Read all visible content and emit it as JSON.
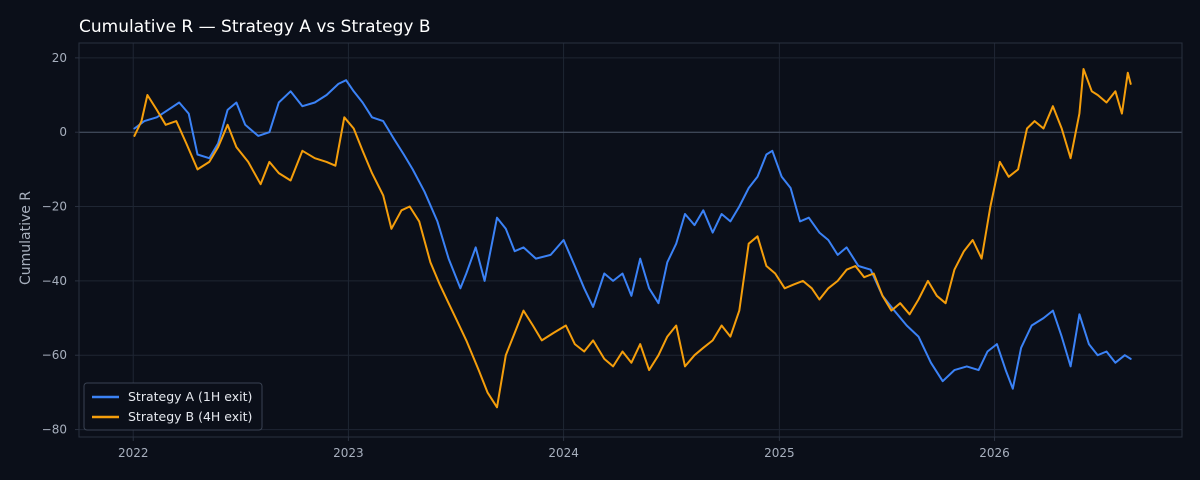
{
  "colors": {
    "background": "#0b0f19",
    "axes_border": "#2a3140",
    "grid": "#1f2633",
    "zero_line": "#4b5566",
    "tick_text": "#a7afbd",
    "title_text": "#ffffff"
  },
  "chart_data": {
    "type": "line",
    "title": "Cumulative R — Strategy A vs Strategy B",
    "xlabel": "",
    "ylabel": "Cumulative R",
    "xlim": [
      "2021-10-01",
      "2026-11-15"
    ],
    "ylim": [
      -82,
      24
    ],
    "x_ticks": [
      "2022",
      "2023",
      "2024",
      "2025",
      "2026"
    ],
    "y_ticks": [
      20,
      0,
      -20,
      -40,
      -60,
      -80
    ],
    "y_tick_labels": [
      "20",
      "0",
      "−20",
      "−40",
      "−60",
      "−80"
    ],
    "grid": true,
    "zero_line": true,
    "legend_position": "lower-left",
    "series": [
      {
        "name": "Strategy A (1H exit)",
        "color": "#3b82f6",
        "points": [
          [
            "2022-01-03",
            1
          ],
          [
            "2022-01-20",
            3
          ],
          [
            "2022-02-10",
            4
          ],
          [
            "2022-03-01",
            6
          ],
          [
            "2022-03-20",
            8
          ],
          [
            "2022-04-05",
            5
          ],
          [
            "2022-04-20",
            -6
          ],
          [
            "2022-05-10",
            -7
          ],
          [
            "2022-05-25",
            -3
          ],
          [
            "2022-06-10",
            6
          ],
          [
            "2022-06-25",
            8
          ],
          [
            "2022-07-10",
            2
          ],
          [
            "2022-08-01",
            -1
          ],
          [
            "2022-08-20",
            0
          ],
          [
            "2022-09-05",
            8
          ],
          [
            "2022-09-25",
            11
          ],
          [
            "2022-10-15",
            7
          ],
          [
            "2022-11-05",
            8
          ],
          [
            "2022-11-25",
            10
          ],
          [
            "2022-12-15",
            13
          ],
          [
            "2022-12-28",
            14
          ],
          [
            "2023-01-10",
            11
          ],
          [
            "2023-01-25",
            8
          ],
          [
            "2023-02-10",
            4
          ],
          [
            "2023-03-01",
            3
          ],
          [
            "2023-03-20",
            -2
          ],
          [
            "2023-04-05",
            -6
          ],
          [
            "2023-04-20",
            -10
          ],
          [
            "2023-05-10",
            -16
          ],
          [
            "2023-06-01",
            -24
          ],
          [
            "2023-06-20",
            -34
          ],
          [
            "2023-07-10",
            -42
          ],
          [
            "2023-07-20",
            -38
          ],
          [
            "2023-08-05",
            -31
          ],
          [
            "2023-08-20",
            -40
          ],
          [
            "2023-09-10",
            -23
          ],
          [
            "2023-09-25",
            -26
          ],
          [
            "2023-10-10",
            -32
          ],
          [
            "2023-10-25",
            -31
          ],
          [
            "2023-11-15",
            -34
          ],
          [
            "2023-12-10",
            -33
          ],
          [
            "2024-01-01",
            -29
          ],
          [
            "2024-01-20",
            -36
          ],
          [
            "2024-02-05",
            -42
          ],
          [
            "2024-02-20",
            -47
          ],
          [
            "2024-03-10",
            -38
          ],
          [
            "2024-03-25",
            -40
          ],
          [
            "2024-04-10",
            -38
          ],
          [
            "2024-04-25",
            -44
          ],
          [
            "2024-05-10",
            -34
          ],
          [
            "2024-05-25",
            -42
          ],
          [
            "2024-06-10",
            -46
          ],
          [
            "2024-06-25",
            -35
          ],
          [
            "2024-07-10",
            -30
          ],
          [
            "2024-07-25",
            -22
          ],
          [
            "2024-08-10",
            -25
          ],
          [
            "2024-08-25",
            -21
          ],
          [
            "2024-09-10",
            -27
          ],
          [
            "2024-09-25",
            -22
          ],
          [
            "2024-10-10",
            -24
          ],
          [
            "2024-10-25",
            -20
          ],
          [
            "2024-11-10",
            -15
          ],
          [
            "2024-11-25",
            -12
          ],
          [
            "2024-12-10",
            -6
          ],
          [
            "2024-12-20",
            -5
          ],
          [
            "2025-01-05",
            -12
          ],
          [
            "2025-01-20",
            -15
          ],
          [
            "2025-02-05",
            -24
          ],
          [
            "2025-02-20",
            -23
          ],
          [
            "2025-03-10",
            -27
          ],
          [
            "2025-03-25",
            -29
          ],
          [
            "2025-04-10",
            -33
          ],
          [
            "2025-04-25",
            -31
          ],
          [
            "2025-05-15",
            -36
          ],
          [
            "2025-06-05",
            -37
          ],
          [
            "2025-06-25",
            -44
          ],
          [
            "2025-07-15",
            -48
          ],
          [
            "2025-08-05",
            -52
          ],
          [
            "2025-08-25",
            -55
          ],
          [
            "2025-09-15",
            -62
          ],
          [
            "2025-10-05",
            -67
          ],
          [
            "2025-10-25",
            -64
          ],
          [
            "2025-11-15",
            -63
          ],
          [
            "2025-12-05",
            -64
          ],
          [
            "2025-12-20",
            -59
          ],
          [
            "2026-01-05",
            -57
          ],
          [
            "2026-01-20",
            -64
          ],
          [
            "2026-02-01",
            -69
          ],
          [
            "2026-02-15",
            -58
          ],
          [
            "2026-03-05",
            -52
          ],
          [
            "2026-03-25",
            -50
          ],
          [
            "2026-04-10",
            -48
          ],
          [
            "2026-04-25",
            -55
          ],
          [
            "2026-05-10",
            -63
          ],
          [
            "2026-05-25",
            -49
          ],
          [
            "2026-06-10",
            -57
          ],
          [
            "2026-06-25",
            -60
          ],
          [
            "2026-07-10",
            -59
          ],
          [
            "2026-07-25",
            -62
          ],
          [
            "2026-08-10",
            -60
          ],
          [
            "2026-08-20",
            -61
          ]
        ]
      },
      {
        "name": "Strategy B (4H exit)",
        "color": "#f59e0b",
        "points": [
          [
            "2022-01-03",
            -1
          ],
          [
            "2022-01-15",
            3
          ],
          [
            "2022-01-25",
            10
          ],
          [
            "2022-02-10",
            6
          ],
          [
            "2022-02-25",
            2
          ],
          [
            "2022-03-15",
            3
          ],
          [
            "2022-04-01",
            -3
          ],
          [
            "2022-04-20",
            -10
          ],
          [
            "2022-05-10",
            -8
          ],
          [
            "2022-05-25",
            -4
          ],
          [
            "2022-06-10",
            2
          ],
          [
            "2022-06-25",
            -4
          ],
          [
            "2022-07-15",
            -8
          ],
          [
            "2022-08-05",
            -14
          ],
          [
            "2022-08-20",
            -8
          ],
          [
            "2022-09-05",
            -11
          ],
          [
            "2022-09-25",
            -13
          ],
          [
            "2022-10-15",
            -5
          ],
          [
            "2022-11-05",
            -7
          ],
          [
            "2022-11-25",
            -8
          ],
          [
            "2022-12-10",
            -9
          ],
          [
            "2022-12-25",
            4
          ],
          [
            "2023-01-10",
            1
          ],
          [
            "2023-01-25",
            -5
          ],
          [
            "2023-02-10",
            -11
          ],
          [
            "2023-03-01",
            -17
          ],
          [
            "2023-03-15",
            -26
          ],
          [
            "2023-04-01",
            -21
          ],
          [
            "2023-04-15",
            -20
          ],
          [
            "2023-05-01",
            -24
          ],
          [
            "2023-05-20",
            -35
          ],
          [
            "2023-06-05",
            -41
          ],
          [
            "2023-06-20",
            -46
          ],
          [
            "2023-07-05",
            -51
          ],
          [
            "2023-07-20",
            -56
          ],
          [
            "2023-08-10",
            -64
          ],
          [
            "2023-08-25",
            -70
          ],
          [
            "2023-09-10",
            -74
          ],
          [
            "2023-09-25",
            -60
          ],
          [
            "2023-10-10",
            -54
          ],
          [
            "2023-10-25",
            -48
          ],
          [
            "2023-11-10",
            -52
          ],
          [
            "2023-11-25",
            -56
          ],
          [
            "2023-12-15",
            -54
          ],
          [
            "2024-01-05",
            -52
          ],
          [
            "2024-01-20",
            -57
          ],
          [
            "2024-02-05",
            -59
          ],
          [
            "2024-02-20",
            -56
          ],
          [
            "2024-03-10",
            -61
          ],
          [
            "2024-03-25",
            -63
          ],
          [
            "2024-04-10",
            -59
          ],
          [
            "2024-04-25",
            -62
          ],
          [
            "2024-05-10",
            -57
          ],
          [
            "2024-05-25",
            -64
          ],
          [
            "2024-06-10",
            -60
          ],
          [
            "2024-06-25",
            -55
          ],
          [
            "2024-07-10",
            -52
          ],
          [
            "2024-07-25",
            -63
          ],
          [
            "2024-08-10",
            -60
          ],
          [
            "2024-08-25",
            -58
          ],
          [
            "2024-09-10",
            -56
          ],
          [
            "2024-09-25",
            -52
          ],
          [
            "2024-10-10",
            -55
          ],
          [
            "2024-10-25",
            -48
          ],
          [
            "2024-11-10",
            -30
          ],
          [
            "2024-11-25",
            -28
          ],
          [
            "2024-12-10",
            -36
          ],
          [
            "2024-12-25",
            -38
          ],
          [
            "2025-01-10",
            -42
          ],
          [
            "2025-01-25",
            -41
          ],
          [
            "2025-02-10",
            -40
          ],
          [
            "2025-02-25",
            -42
          ],
          [
            "2025-03-10",
            -45
          ],
          [
            "2025-03-25",
            -42
          ],
          [
            "2025-04-10",
            -40
          ],
          [
            "2025-04-25",
            -37
          ],
          [
            "2025-05-10",
            -36
          ],
          [
            "2025-05-25",
            -39
          ],
          [
            "2025-06-10",
            -38
          ],
          [
            "2025-06-25",
            -44
          ],
          [
            "2025-07-10",
            -48
          ],
          [
            "2025-07-25",
            -46
          ],
          [
            "2025-08-10",
            -49
          ],
          [
            "2025-08-25",
            -45
          ],
          [
            "2025-09-10",
            -40
          ],
          [
            "2025-09-25",
            -44
          ],
          [
            "2025-10-10",
            -46
          ],
          [
            "2025-10-25",
            -37
          ],
          [
            "2025-11-10",
            -32
          ],
          [
            "2025-11-25",
            -29
          ],
          [
            "2025-12-10",
            -34
          ],
          [
            "2025-12-25",
            -20
          ],
          [
            "2026-01-10",
            -8
          ],
          [
            "2026-01-25",
            -12
          ],
          [
            "2026-02-10",
            -10
          ],
          [
            "2026-02-25",
            1
          ],
          [
            "2026-03-10",
            3
          ],
          [
            "2026-03-25",
            1
          ],
          [
            "2026-04-10",
            7
          ],
          [
            "2026-04-25",
            1
          ],
          [
            "2026-05-10",
            -7
          ],
          [
            "2026-05-25",
            5
          ],
          [
            "2026-06-01",
            17
          ],
          [
            "2026-06-15",
            11
          ],
          [
            "2026-06-25",
            10
          ],
          [
            "2026-07-10",
            8
          ],
          [
            "2026-07-25",
            11
          ],
          [
            "2026-08-05",
            5
          ],
          [
            "2026-08-15",
            16
          ],
          [
            "2026-08-20",
            13
          ]
        ]
      }
    ]
  }
}
